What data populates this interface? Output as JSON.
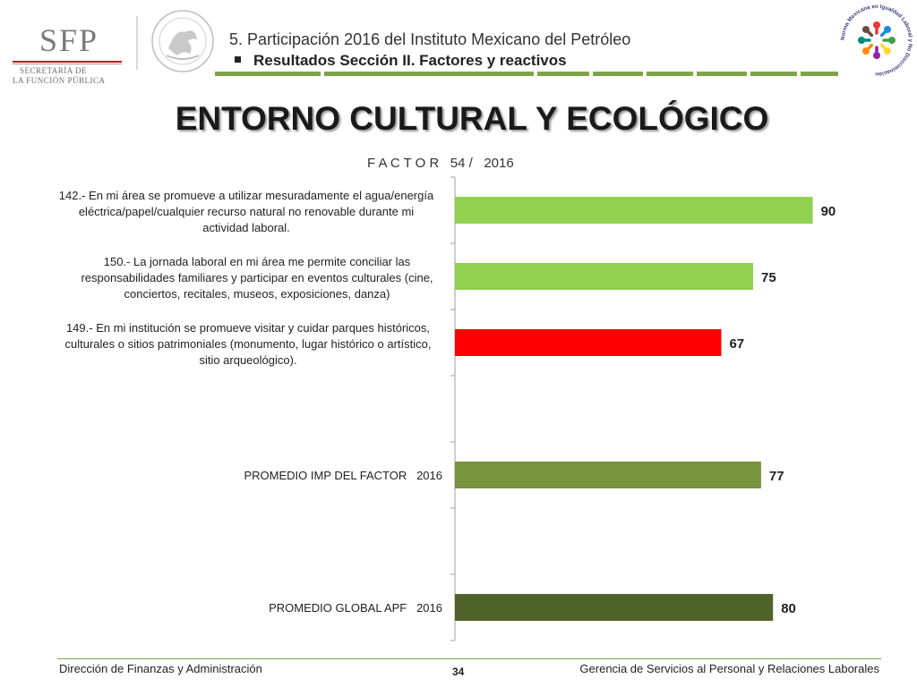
{
  "header": {
    "org_logo": {
      "acronym": "SFP",
      "line1": "SECRETARÍA DE",
      "line2": "LA FUNCIÓN PÚBLICA"
    },
    "title": "5. Participación 2016 del Instituto Mexicano del Petróleo",
    "subtitle": "Resultados Sección II. Factores y reactivos",
    "deco_color": "#7da548",
    "norma_logo_colors": [
      "#e53935",
      "#1e88e5",
      "#43a047",
      "#fdd835",
      "#8e24aa",
      "#fb8c00",
      "#00897b",
      "#6d4c41"
    ],
    "norma_logo_text": "Norma Mexicana en Igualdad Laboral y No Discriminación"
  },
  "main_title": "ENTORNO CULTURAL Y ECOLÓGICO",
  "factor_label": "F A C T O R   54 /   2016",
  "chart_data": {
    "type": "bar",
    "orientation": "horizontal",
    "categories": [
      "142.- En mi área se promueve a utilizar mesuradamente el agua/energía eléctrica/papel/cualquier recurso natural no renovable durante mi actividad laboral.",
      "150.- La jornada laboral en mi área me permite conciliar las responsabilidades familiares y participar en eventos culturales (cine, conciertos, recitales, museos, exposiciones, danza)",
      "149.- En mi institución se promueve visitar y cuidar parques históricos, culturales o sitios patrimoniales (monumento, lugar histórico o artístico, sitio arqueológico).",
      "",
      "PROMEDIO IMP DEL FACTOR   2016",
      "",
      "PROMEDIO GLOBAL APF   2016"
    ],
    "values": [
      90,
      75,
      67,
      null,
      77,
      null,
      80
    ],
    "value_labels": [
      "90",
      "75",
      "67",
      "",
      "77",
      "",
      "80"
    ],
    "colors": [
      "#92d050",
      "#92d050",
      "#ff0000",
      null,
      "#77933c",
      null,
      "#4f6228"
    ],
    "xlim": [
      0,
      100
    ],
    "grid": false,
    "legend": "none"
  },
  "question_lines": [
    [
      "142.- En mi área se promueve a utilizar mesuradamente el agua/energía",
      "eléctrica/papel/cualquier recurso natural no renovable durante mi",
      "actividad laboral."
    ],
    [
      "150.- La jornada laboral en mi área me permite conciliar las",
      "responsabilidades familiares y participar en eventos culturales (cine,",
      "conciertos, recitales, museos, exposiciones, danza)"
    ],
    [
      "149.- En mi institución se promueve visitar y cuidar parques históricos,",
      "culturales o sitios patrimoniales (monumento, lugar histórico o artístico,",
      "sitio arqueológico)."
    ]
  ],
  "footer": {
    "left": "Dirección de Finanzas y Administración",
    "right": "Gerencia de Servicios al Personal y Relaciones Laborales",
    "page": "34"
  }
}
